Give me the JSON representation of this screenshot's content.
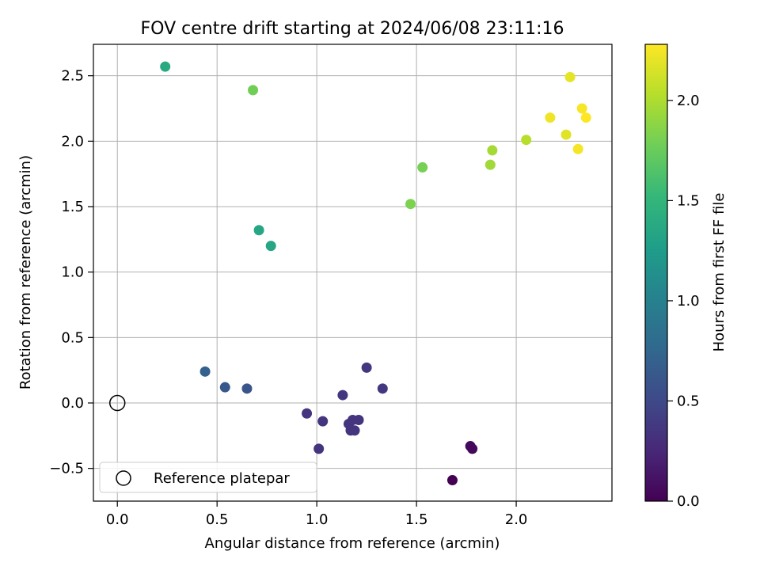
{
  "chart_data": {
    "type": "scatter",
    "title": "FOV centre drift starting at 2024/06/08 23:11:16",
    "xlabel": "Angular distance from reference (arcmin)",
    "ylabel": "Rotation from reference (arcmin)",
    "xlim": [
      -0.12,
      2.48
    ],
    "ylim": [
      -0.75,
      2.74
    ],
    "xticks": [
      0.0,
      0.5,
      1.0,
      1.5,
      2.0
    ],
    "xtick_labels": [
      "0.0",
      "0.5",
      "1.0",
      "1.5",
      "2.0"
    ],
    "yticks": [
      -0.5,
      0.0,
      0.5,
      1.0,
      1.5,
      2.0,
      2.5
    ],
    "ytick_labels": [
      "−0.5",
      "0.0",
      "0.5",
      "1.0",
      "1.5",
      "2.0",
      "2.5"
    ],
    "grid": true,
    "legend": {
      "position": "lower-left",
      "entries": [
        "Reference platepar"
      ]
    },
    "reference_point": {
      "x": 0.0,
      "y": 0.0,
      "marker": "open-circle",
      "color": "#000000"
    },
    "colorbar": {
      "label": "Hours from first FF file",
      "colormap": "viridis",
      "range": [
        0.0,
        2.28
      ],
      "ticks": [
        0.0,
        0.5,
        1.0,
        1.5,
        2.0
      ],
      "tick_labels": [
        "0.0",
        "0.5",
        "1.0",
        "1.5",
        "2.0"
      ]
    },
    "points": [
      {
        "x": 1.68,
        "y": -0.59,
        "h": 0.0
      },
      {
        "x": 1.77,
        "y": -0.33,
        "h": 0.05
      },
      {
        "x": 1.78,
        "y": -0.35,
        "h": 0.05
      },
      {
        "x": 1.01,
        "y": -0.35,
        "h": 0.35
      },
      {
        "x": 1.17,
        "y": -0.21,
        "h": 0.35
      },
      {
        "x": 1.19,
        "y": -0.21,
        "h": 0.35
      },
      {
        "x": 1.16,
        "y": -0.16,
        "h": 0.35
      },
      {
        "x": 1.18,
        "y": -0.13,
        "h": 0.35
      },
      {
        "x": 1.21,
        "y": -0.13,
        "h": 0.35
      },
      {
        "x": 1.03,
        "y": -0.14,
        "h": 0.35
      },
      {
        "x": 0.95,
        "y": -0.08,
        "h": 0.35
      },
      {
        "x": 1.13,
        "y": 0.06,
        "h": 0.37
      },
      {
        "x": 1.33,
        "y": 0.11,
        "h": 0.37
      },
      {
        "x": 1.25,
        "y": 0.27,
        "h": 0.37
      },
      {
        "x": 0.65,
        "y": 0.11,
        "h": 0.6
      },
      {
        "x": 0.54,
        "y": 0.12,
        "h": 0.62
      },
      {
        "x": 0.44,
        "y": 0.24,
        "h": 0.7
      },
      {
        "x": 0.71,
        "y": 1.32,
        "h": 1.35
      },
      {
        "x": 0.77,
        "y": 1.2,
        "h": 1.35
      },
      {
        "x": 0.24,
        "y": 2.57,
        "h": 1.38
      },
      {
        "x": 1.47,
        "y": 1.52,
        "h": 1.82
      },
      {
        "x": 1.53,
        "y": 1.8,
        "h": 1.8
      },
      {
        "x": 0.68,
        "y": 2.39,
        "h": 1.78
      },
      {
        "x": 1.87,
        "y": 1.82,
        "h": 1.95
      },
      {
        "x": 1.88,
        "y": 1.93,
        "h": 1.97
      },
      {
        "x": 2.05,
        "y": 2.01,
        "h": 2.03
      },
      {
        "x": 2.17,
        "y": 2.18,
        "h": 2.23
      },
      {
        "x": 2.25,
        "y": 2.05,
        "h": 2.18
      },
      {
        "x": 2.27,
        "y": 2.49,
        "h": 2.2
      },
      {
        "x": 2.31,
        "y": 1.94,
        "h": 2.25
      },
      {
        "x": 2.33,
        "y": 2.25,
        "h": 2.26
      },
      {
        "x": 2.35,
        "y": 2.18,
        "h": 2.28
      }
    ]
  }
}
